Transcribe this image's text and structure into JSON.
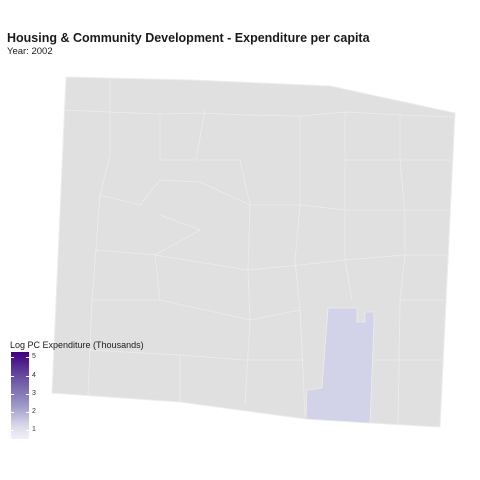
{
  "title": "Housing & Community Development - Expenditure per capita",
  "subtitle": "Year: 2002",
  "legend": {
    "title": "Log PC Expenditure (Thousands)",
    "ticks": [
      "5",
      "4",
      "3",
      "2",
      "1"
    ],
    "tick_values": [
      5,
      4,
      3,
      2,
      1
    ],
    "color_low": "#f2f0f7",
    "color_high": "#3f007d"
  },
  "colors": {
    "no_data_fill": "#e0e0e0",
    "border": "#ececec",
    "highlighted_county_fill": "#d2d2e8"
  }
}
